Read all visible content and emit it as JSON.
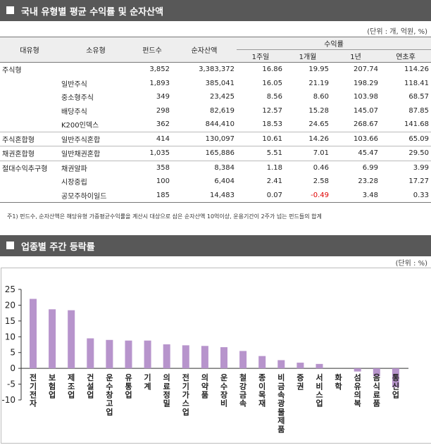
{
  "section1": {
    "title": "국내 유형별 평균 수익률 및 순자산액",
    "unit": "(단위 : 개, 억원, %)",
    "columns": {
      "category": "대유형",
      "subcategory": "소유형",
      "funds": "펀드수",
      "net_assets": "순자산액",
      "returns_group": "수익률",
      "w1": "1주일",
      "m1": "1개월",
      "y1": "1년",
      "ytd": "연초후"
    },
    "rows": [
      {
        "category": "주식형",
        "subcategory": "",
        "funds": "3,852",
        "net_assets": "3,383,372",
        "w1": "16.86",
        "m1": "19.95",
        "y1": "207.74",
        "ytd": "114.26"
      },
      {
        "category": "",
        "subcategory": "일반주식",
        "funds": "1,893",
        "net_assets": "385,041",
        "w1": "16.05",
        "m1": "21.19",
        "y1": "198.29",
        "ytd": "118.41"
      },
      {
        "category": "",
        "subcategory": "중소형주식",
        "funds": "349",
        "net_assets": "23,425",
        "w1": "8.56",
        "m1": "8.60",
        "y1": "103.98",
        "ytd": "68.57"
      },
      {
        "category": "",
        "subcategory": "배당주식",
        "funds": "298",
        "net_assets": "82,619",
        "w1": "12.57",
        "m1": "15.28",
        "y1": "145.07",
        "ytd": "87.85"
      },
      {
        "category": "",
        "subcategory": "K200인덱스",
        "funds": "362",
        "net_assets": "844,410",
        "w1": "18.53",
        "m1": "24.65",
        "y1": "268.67",
        "ytd": "141.68"
      },
      {
        "category": "주식혼합형",
        "subcategory": "일반주식혼합",
        "funds": "414",
        "net_assets": "130,097",
        "w1": "10.61",
        "m1": "14.26",
        "y1": "103.66",
        "ytd": "65.09"
      },
      {
        "category": "채권혼합형",
        "subcategory": "일반채권혼합",
        "funds": "1,035",
        "net_assets": "165,886",
        "w1": "5.51",
        "m1": "7.01",
        "y1": "45.47",
        "ytd": "29.50"
      },
      {
        "category": "절대수익추구형",
        "subcategory": "채권알파",
        "funds": "358",
        "net_assets": "8,384",
        "w1": "1.18",
        "m1": "0.46",
        "y1": "6.99",
        "ytd": "3.99"
      },
      {
        "category": "",
        "subcategory": "시장중립",
        "funds": "100",
        "net_assets": "6,404",
        "w1": "2.41",
        "m1": "2.58",
        "y1": "23.28",
        "ytd": "17.27"
      },
      {
        "category": "",
        "subcategory": "공모주하이일드",
        "funds": "185",
        "net_assets": "14,483",
        "w1": "0.07",
        "m1": "-0.49",
        "y1": "3.48",
        "ytd": "0.33"
      }
    ],
    "note": "주1) 펀드수, 순자산액은 해당유형 가중평균수익률을 계산시 대상으로 삼은 순자산액 10억이상, 운용기간이 2주가 넘는 펀드들의 합계"
  },
  "section2": {
    "title": "업종별 주간 등락률",
    "unit": "(단위 : %)"
  },
  "colors": {
    "header_bar": "#585858",
    "bar": "#b794cc",
    "negative": "#e00000"
  },
  "chart_data": {
    "type": "bar",
    "title": "",
    "xlabel": "",
    "ylabel": "",
    "ylim": [
      -10,
      25
    ],
    "yticks": [
      "25",
      "20",
      "15",
      "10",
      "5",
      "0",
      "-5",
      "-10"
    ],
    "grid": false,
    "categories": [
      "전기전자",
      "보험업",
      "제조업",
      "건설업",
      "운수창고업",
      "유통업",
      "기계",
      "의료정밀",
      "전기가스업",
      "의약품",
      "운수장비",
      "철강금속",
      "종이목재",
      "비금속광물제품",
      "증권",
      "서비스업",
      "화학",
      "섬유의복",
      "음식료품",
      "통신업"
    ],
    "values": [
      22.0,
      18.7,
      18.4,
      9.5,
      9.0,
      8.8,
      8.8,
      7.6,
      7.3,
      7.1,
      6.7,
      5.5,
      3.9,
      2.6,
      1.8,
      1.4,
      0.0,
      -1.0,
      -2.5,
      -6.0
    ]
  }
}
